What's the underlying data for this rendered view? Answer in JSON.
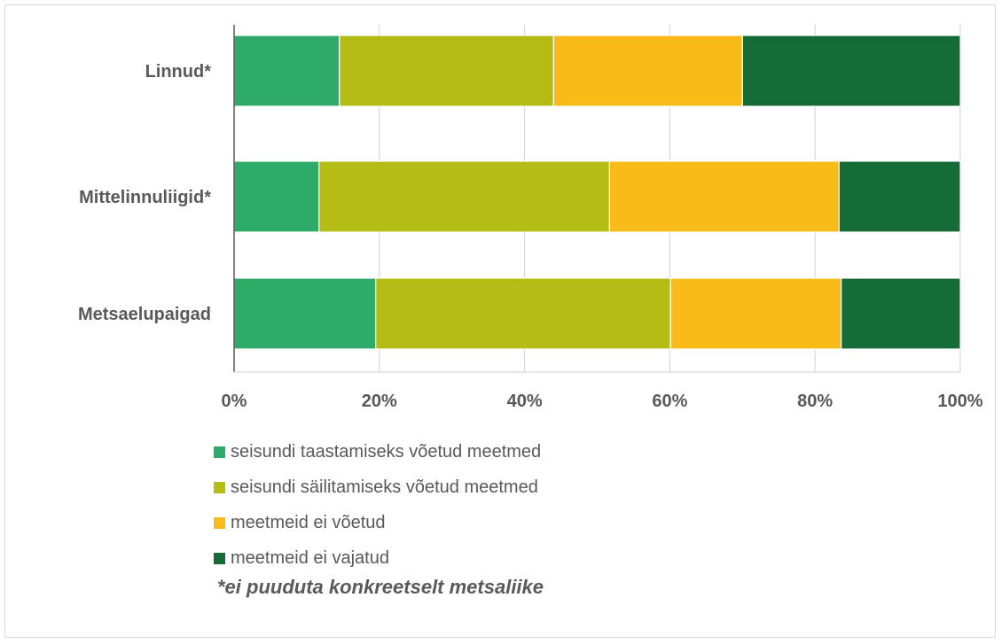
{
  "chart_data": {
    "type": "bar",
    "orientation": "horizontal",
    "stacked": "percent",
    "categories": [
      "Linnud*",
      "Mittelinnuliigid*",
      "Metsaelupaigad"
    ],
    "series": [
      {
        "name": "seisundi taastamiseks võetud meetmed",
        "color": "#2eaa69",
        "values": [
          14.5,
          11.7,
          19.5
        ]
      },
      {
        "name": "seisundi säilitamiseks võetud meetmed",
        "color": "#b5bc14",
        "values": [
          29.5,
          40.0,
          40.6
        ]
      },
      {
        "name": "meetmeid ei võetud",
        "color": "#f9bb18",
        "values": [
          26.0,
          31.6,
          23.5
        ]
      },
      {
        "name": "meetmeid ei vajatud",
        "color": "#146b35",
        "values": [
          30.0,
          16.7,
          16.4
        ]
      }
    ],
    "xlim": [
      0,
      100
    ],
    "xticks": [
      "0%",
      "20%",
      "40%",
      "60%",
      "80%",
      "100%"
    ],
    "grid": true,
    "legend_position": "bottom",
    "title": "",
    "xlabel": "",
    "ylabel": ""
  },
  "footnote": "*ei puuduta konkreetselt metsaliike"
}
